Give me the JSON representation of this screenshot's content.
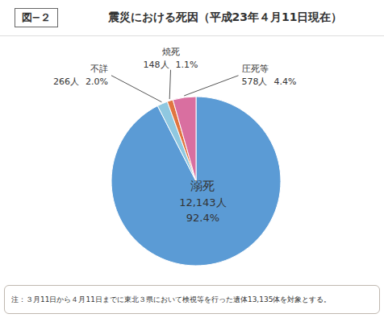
{
  "chart_data": {
    "type": "pie",
    "title": "震災における死因（平成23年４月11日現在）",
    "annotations": [
      "図−２",
      "注：３月11日から４月11日までに東北３県において検視等を行った遺体13,135体を対象とする。"
    ],
    "categories": [
      "溺死",
      "不詳",
      "焼死",
      "圧死等"
    ],
    "values": [
      92.4,
      2.0,
      1.1,
      4.4
    ],
    "value_labels": [
      "92.4%",
      "2.0%",
      "1.1%",
      "4.4%"
    ],
    "counts": [
      12143,
      266,
      148,
      578
    ],
    "count_labels": [
      "12,143人",
      "266人",
      "148人",
      "578人"
    ],
    "colors": [
      "#5b9bd5",
      "#8fc8e0",
      "#e07540",
      "#d96fa0"
    ],
    "data_labels": true
  }
}
